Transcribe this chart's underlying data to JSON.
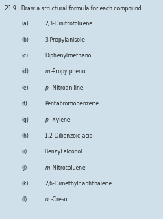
{
  "title": "21.9.  Draw a structural formula for each compound.",
  "background_color": "#cfe0ea",
  "title_fontsize": 5.5,
  "item_fontsize": 5.5,
  "items": [
    {
      "label": "(a)",
      "text": "2,3-Dinitrotoluene",
      "italic_prefix": null
    },
    {
      "label": "(b)",
      "text": "3-Propylanisole",
      "italic_prefix": null
    },
    {
      "label": "(c)",
      "text": "Diphenylmethanol",
      "italic_prefix": null
    },
    {
      "label": "(d)",
      "text": "-Propylphenol",
      "italic_prefix": "m"
    },
    {
      "label": "(e)",
      "text": "-Nitroaniline",
      "italic_prefix": "p"
    },
    {
      "label": "(f)",
      "text": "Pentabromobenzene",
      "italic_prefix": null
    },
    {
      "label": "(g)",
      "text": "-Xylene",
      "italic_prefix": "p"
    },
    {
      "label": "(h)",
      "text": "1,2-Dibenzoic acid",
      "italic_prefix": null
    },
    {
      "label": "(i)",
      "text": "Benzyl alcohol",
      "italic_prefix": null
    },
    {
      "label": "(j)",
      "text": "-Nitrotoluene",
      "italic_prefix": "m"
    },
    {
      "label": "(k)",
      "text": "2,6-Dimethylnaphthalene",
      "italic_prefix": null
    },
    {
      "label": "(l)",
      "text": "-Cresol",
      "italic_prefix": "o"
    }
  ]
}
